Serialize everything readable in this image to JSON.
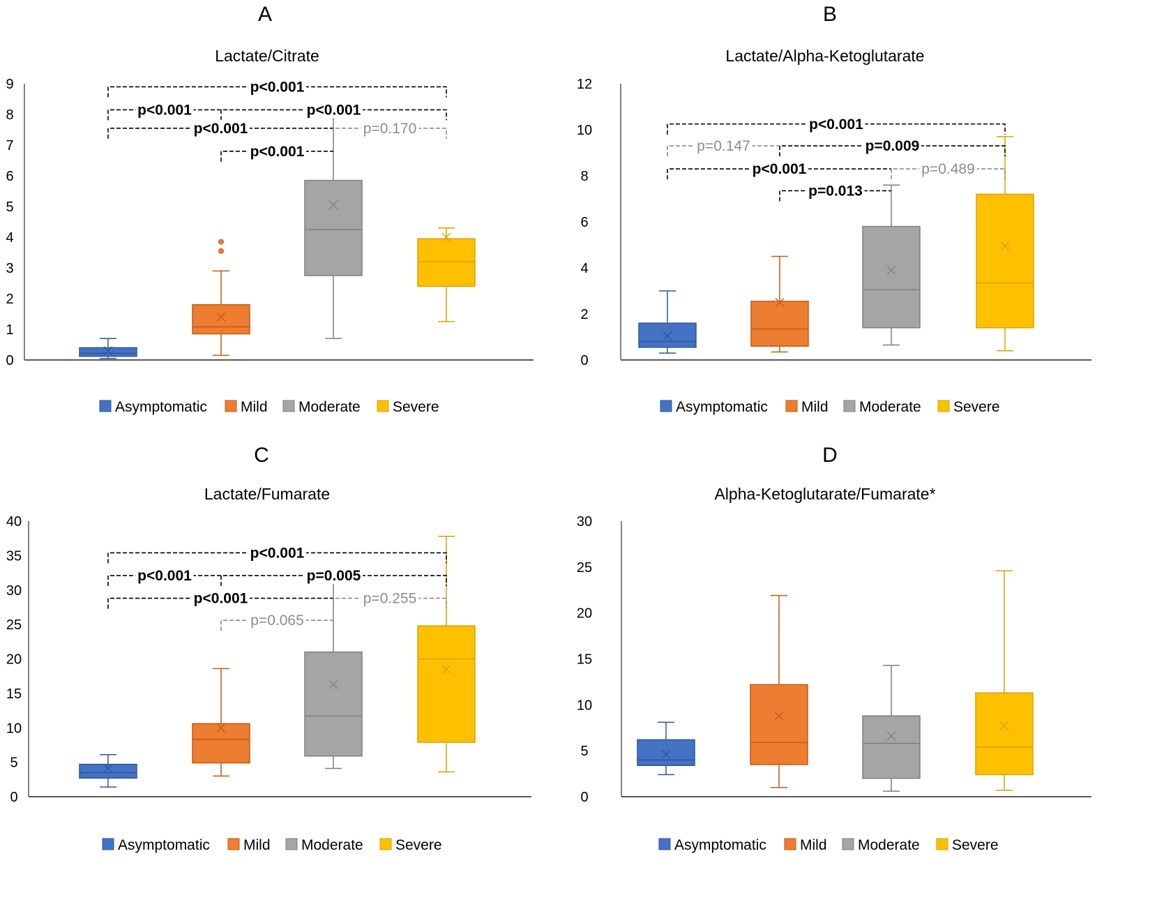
{
  "colors": {
    "Asymptomatic": {
      "fill": "#4472C4",
      "stroke": "#2F5597"
    },
    "Mild": {
      "fill": "#ED7D31",
      "stroke": "#C55A11"
    },
    "Moderate": {
      "fill": "#A5A5A5",
      "stroke": "#7F7F7F"
    },
    "Severe": {
      "fill": "#FFC000",
      "stroke": "#D6A300"
    },
    "sig": "#000000",
    "nonsig": "#8C8C8C"
  },
  "legend": [
    "Asymptomatic",
    "Mild",
    "Moderate",
    "Severe"
  ],
  "chart_data": [
    {
      "panel": "A",
      "type": "box",
      "title": "Lactate/Citrate",
      "xlabel": "",
      "ylabel": "",
      "ylim": [
        0,
        9
      ],
      "yticks": [
        0,
        1,
        2,
        3,
        4,
        5,
        6,
        7,
        8,
        9
      ],
      "legend_position": "bottom",
      "grid": false,
      "categories": [
        "Asymptomatic",
        "Mild",
        "Moderate",
        "Severe"
      ],
      "boxes": [
        {
          "name": "Asymptomatic",
          "min": 0.05,
          "q1": 0.12,
          "median": 0.22,
          "q3": 0.4,
          "max": 0.7,
          "mean": 0.3,
          "outliers": []
        },
        {
          "name": "Mild",
          "min": 0.15,
          "q1": 0.85,
          "median": 1.08,
          "q3": 1.8,
          "max": 2.9,
          "mean": 1.4,
          "outliers": [
            3.55,
            3.85
          ]
        },
        {
          "name": "Moderate",
          "min": 0.7,
          "q1": 2.75,
          "median": 4.25,
          "q3": 5.85,
          "max": 8.15,
          "mean": 5.05,
          "outliers": []
        },
        {
          "name": "Severe",
          "min": 1.25,
          "q1": 2.4,
          "median": 3.2,
          "q3": 3.95,
          "max": 4.3,
          "mean": 4.0,
          "outliers": []
        }
      ],
      "comparisons": [
        {
          "from": 0,
          "to": 3,
          "level": 8.9,
          "label": "p<0.001",
          "significant": true
        },
        {
          "from": 0,
          "to": 1,
          "level": 8.15,
          "label": "p<0.001",
          "significant": true
        },
        {
          "from": 1,
          "to": 3,
          "level": 8.15,
          "label": "p<0.001",
          "significant": true
        },
        {
          "from": 0,
          "to": 2,
          "level": 7.55,
          "label": "p<0.001",
          "significant": true
        },
        {
          "from": 2,
          "to": 3,
          "level": 7.55,
          "label": "p=0.170",
          "significant": false
        },
        {
          "from": 1,
          "to": 2,
          "level": 6.8,
          "label": "p<0.001",
          "significant": true
        }
      ]
    },
    {
      "panel": "B",
      "type": "box",
      "title": "Lactate/Alpha-Ketoglutarate",
      "xlabel": "",
      "ylabel": "",
      "ylim": [
        0,
        12
      ],
      "yticks": [
        0,
        2,
        4,
        6,
        8,
        10,
        12
      ],
      "legend_position": "bottom",
      "grid": false,
      "categories": [
        "Asymptomatic",
        "Mild",
        "Moderate",
        "Severe"
      ],
      "boxes": [
        {
          "name": "Asymptomatic",
          "min": 0.3,
          "q1": 0.55,
          "median": 0.8,
          "q3": 1.6,
          "max": 3.0,
          "mean": 1.05,
          "outliers": []
        },
        {
          "name": "Mild",
          "min": 0.35,
          "q1": 0.6,
          "median": 1.35,
          "q3": 2.55,
          "max": 4.5,
          "mean": 2.5,
          "outliers": []
        },
        {
          "name": "Moderate",
          "min": 0.65,
          "q1": 1.4,
          "median": 3.05,
          "q3": 5.8,
          "max": 7.6,
          "mean": 3.9,
          "outliers": []
        },
        {
          "name": "Severe",
          "min": 0.4,
          "q1": 1.4,
          "median": 3.35,
          "q3": 7.2,
          "max": 9.7,
          "mean": 4.95,
          "outliers": []
        }
      ],
      "comparisons": [
        {
          "from": 0,
          "to": 3,
          "level": 10.25,
          "label": "p<0.001",
          "significant": true
        },
        {
          "from": 0,
          "to": 1,
          "level": 9.3,
          "label": "p=0.147",
          "significant": false
        },
        {
          "from": 1,
          "to": 3,
          "level": 9.3,
          "label": "p=0.009",
          "significant": true
        },
        {
          "from": 0,
          "to": 2,
          "level": 8.3,
          "label": "p<0.001",
          "significant": true
        },
        {
          "from": 2,
          "to": 3,
          "level": 8.3,
          "label": "p=0.489",
          "significant": false
        },
        {
          "from": 1,
          "to": 2,
          "level": 7.35,
          "label": "p=0.013",
          "significant": true
        }
      ]
    },
    {
      "panel": "C",
      "type": "box",
      "title": "Lactate/Fumarate",
      "xlabel": "",
      "ylabel": "",
      "ylim": [
        0,
        40
      ],
      "yticks": [
        0,
        5,
        10,
        15,
        20,
        25,
        30,
        35,
        40
      ],
      "legend_position": "bottom",
      "grid": false,
      "categories": [
        "Asymptomatic",
        "Mild",
        "Moderate",
        "Severe"
      ],
      "boxes": [
        {
          "name": "Asymptomatic",
          "min": 1.4,
          "q1": 2.7,
          "median": 3.5,
          "q3": 4.7,
          "max": 6.1,
          "mean": 4.1,
          "outliers": []
        },
        {
          "name": "Mild",
          "min": 3.0,
          "q1": 4.9,
          "median": 8.3,
          "q3": 10.6,
          "max": 18.6,
          "mean": 10.0,
          "outliers": []
        },
        {
          "name": "Moderate",
          "min": 4.1,
          "q1": 5.9,
          "median": 11.7,
          "q3": 21.0,
          "max": 31.3,
          "mean": 16.3,
          "outliers": []
        },
        {
          "name": "Severe",
          "min": 3.6,
          "q1": 7.9,
          "median": 20.0,
          "q3": 24.8,
          "max": 37.8,
          "mean": 18.5,
          "outliers": []
        }
      ],
      "comparisons": [
        {
          "from": 0,
          "to": 3,
          "level": 35.4,
          "label": "p<0.001",
          "significant": true
        },
        {
          "from": 0,
          "to": 1,
          "level": 32.1,
          "label": "p<0.001",
          "significant": true
        },
        {
          "from": 1,
          "to": 3,
          "level": 32.1,
          "label": "p=0.005",
          "significant": true
        },
        {
          "from": 0,
          "to": 2,
          "level": 28.8,
          "label": "p<0.001",
          "significant": true
        },
        {
          "from": 2,
          "to": 3,
          "level": 28.8,
          "label": "p=0.255",
          "significant": false
        },
        {
          "from": 1,
          "to": 2,
          "level": 25.6,
          "label": "p=0.065",
          "significant": false
        }
      ]
    },
    {
      "panel": "D",
      "type": "box",
      "title": "Alpha-Ketoglutarate/Fumarate*",
      "xlabel": "",
      "ylabel": "",
      "ylim": [
        0,
        30
      ],
      "yticks": [
        0,
        5,
        10,
        15,
        20,
        25,
        30
      ],
      "legend_position": "bottom",
      "grid": false,
      "categories": [
        "Asymptomatic",
        "Mild",
        "Moderate",
        "Severe"
      ],
      "boxes": [
        {
          "name": "Asymptomatic",
          "min": 2.4,
          "q1": 3.4,
          "median": 4.0,
          "q3": 6.2,
          "max": 8.1,
          "mean": 4.6,
          "outliers": []
        },
        {
          "name": "Mild",
          "min": 1.0,
          "q1": 3.5,
          "median": 5.9,
          "q3": 12.2,
          "max": 21.9,
          "mean": 8.8,
          "outliers": []
        },
        {
          "name": "Moderate",
          "min": 0.6,
          "q1": 2.0,
          "median": 5.8,
          "q3": 8.8,
          "max": 14.3,
          "mean": 6.6,
          "outliers": []
        },
        {
          "name": "Severe",
          "min": 0.7,
          "q1": 2.4,
          "median": 5.4,
          "q3": 11.3,
          "max": 24.6,
          "mean": 7.7,
          "outliers": []
        }
      ],
      "comparisons": []
    }
  ]
}
